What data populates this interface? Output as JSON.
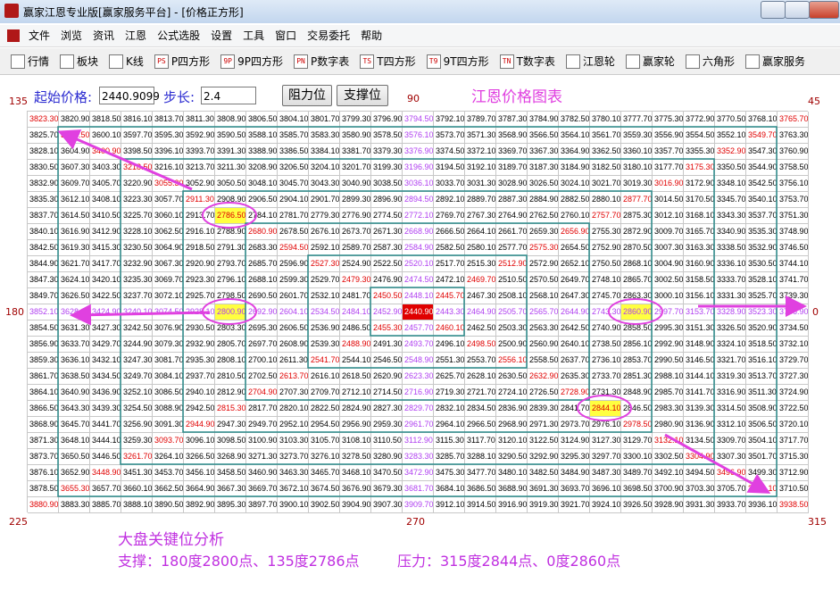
{
  "window": {
    "title": "赢家江恩专业版[赢家服务平台] - [价格正方形]"
  },
  "menu": [
    "文件",
    "浏览",
    "资讯",
    "江恩",
    "公式选股",
    "设置",
    "工具",
    "窗口",
    "交易委托",
    "帮助"
  ],
  "toolbar": [
    {
      "label": "行情"
    },
    {
      "label": "板块"
    },
    {
      "label": "K线"
    },
    {
      "icon": "PS",
      "label": "P四方形"
    },
    {
      "icon": "9P",
      "label": "9P四方形"
    },
    {
      "icon": "PN",
      "label": "P数字表"
    },
    {
      "icon": "TS",
      "label": "T四方形"
    },
    {
      "icon": "T9",
      "label": "9T四方形"
    },
    {
      "icon": "TN",
      "label": "T数字表"
    },
    {
      "label": "江恩轮"
    },
    {
      "label": "赢家轮"
    },
    {
      "label": "六角形"
    },
    {
      "label": "赢家服务"
    }
  ],
  "controls": {
    "start_label": "起始价格:",
    "start_value": "2440.9099",
    "step_label": "步长:",
    "step_value": "2.4",
    "buttons": [
      "阻力位",
      "支撑位"
    ]
  },
  "chart_title": "江恩价格图表",
  "angles": {
    "top_left": "135",
    "top": "90",
    "top_right": "45",
    "left": "180",
    "right": "0",
    "bottom_left": "225",
    "bottom": "270",
    "bottom_right": "315"
  },
  "analysis": {
    "title": "大盘关键位分析",
    "support": "支撑：180度2800点、135度2786点",
    "resistance": "压力：315度2844点、0度2860点"
  },
  "table": {
    "rows": [
      [
        "3823.30",
        "3820.90",
        "3818.50",
        "3816.10",
        "3813.70",
        "3811.30",
        "3808.90",
        "3806.50",
        "3804.10",
        "3801.70",
        "3799.30",
        "3796.90",
        "3794.50",
        "3792.10",
        "3789.70",
        "3787.30",
        "3784.90",
        "3782.50",
        "3780.10",
        "3777.70",
        "3775.30",
        "3772.90",
        "3770.50",
        "3768.10",
        "3765.70"
      ],
      [
        "3825.70",
        "3602.50",
        "3600.10",
        "3597.70",
        "3595.30",
        "3592.90",
        "3590.50",
        "3588.10",
        "3585.70",
        "3583.30",
        "3580.90",
        "3578.50",
        "3576.10",
        "3573.70",
        "3571.30",
        "3568.90",
        "3566.50",
        "3564.10",
        "3561.70",
        "3559.30",
        "3556.90",
        "3554.50",
        "3552.10",
        "3549.70",
        "3763.30"
      ],
      [
        "3828.10",
        "3604.90",
        "3400.90",
        "3398.50",
        "3396.10",
        "3393.70",
        "3391.30",
        "3388.90",
        "3386.50",
        "3384.10",
        "3381.70",
        "3379.30",
        "3376.90",
        "3374.50",
        "3372.10",
        "3369.70",
        "3367.30",
        "3364.90",
        "3362.50",
        "3360.10",
        "3357.70",
        "3355.30",
        "3352.90",
        "3547.30",
        "3760.90"
      ],
      [
        "3830.50",
        "3607.30",
        "3403.30",
        "3218.50",
        "3216.10",
        "3213.70",
        "3211.30",
        "3208.90",
        "3206.50",
        "3204.10",
        "3201.70",
        "3199.30",
        "3196.90",
        "3194.50",
        "3192.10",
        "3189.70",
        "3187.30",
        "3184.90",
        "3182.50",
        "3180.10",
        "3177.70",
        "3175.30",
        "3350.50",
        "3544.90",
        "3758.50"
      ],
      [
        "3832.90",
        "3609.70",
        "3405.70",
        "3220.90",
        "3055.30",
        "3052.90",
        "3050.50",
        "3048.10",
        "3045.70",
        "3043.30",
        "3040.90",
        "3038.50",
        "3036.10",
        "3033.70",
        "3031.30",
        "3028.90",
        "3026.50",
        "3024.10",
        "3021.70",
        "3019.30",
        "3016.90",
        "3172.90",
        "3348.10",
        "3542.50",
        "3756.10"
      ],
      [
        "3835.30",
        "3612.10",
        "3408.10",
        "3223.30",
        "3057.70",
        "2911.30",
        "2908.90",
        "2906.50",
        "2904.10",
        "2901.70",
        "2899.30",
        "2896.90",
        "2894.50",
        "2892.10",
        "2889.70",
        "2887.30",
        "2884.90",
        "2882.50",
        "2880.10",
        "2877.70",
        "3014.50",
        "3170.50",
        "3345.70",
        "3540.10",
        "3753.70"
      ],
      [
        "3837.70",
        "3614.50",
        "3410.50",
        "3225.70",
        "3060.10",
        "2913.70",
        "2786.50",
        "2784.10",
        "2781.70",
        "2779.30",
        "2776.90",
        "2774.50",
        "2772.10",
        "2769.70",
        "2767.30",
        "2764.90",
        "2762.50",
        "2760.10",
        "2757.70",
        "2875.30",
        "3012.10",
        "3168.10",
        "3343.30",
        "3537.70",
        "3751.30"
      ],
      [
        "3840.10",
        "3616.90",
        "3412.90",
        "3228.10",
        "3062.50",
        "2916.10",
        "2788.90",
        "2680.90",
        "2678.50",
        "2676.10",
        "2673.70",
        "2671.30",
        "2668.90",
        "2666.50",
        "2664.10",
        "2661.70",
        "2659.30",
        "2656.90",
        "2755.30",
        "2872.90",
        "3009.70",
        "3165.70",
        "3340.90",
        "3535.30",
        "3748.90"
      ],
      [
        "3842.50",
        "3619.30",
        "3415.30",
        "3230.50",
        "3064.90",
        "2918.50",
        "2791.30",
        "2683.30",
        "2594.50",
        "2592.10",
        "2589.70",
        "2587.30",
        "2584.90",
        "2582.50",
        "2580.10",
        "2577.70",
        "2575.30",
        "2654.50",
        "2752.90",
        "2870.50",
        "3007.30",
        "3163.30",
        "3338.50",
        "3532.90",
        "3746.50"
      ],
      [
        "3844.90",
        "3621.70",
        "3417.70",
        "3232.90",
        "3067.30",
        "2920.90",
        "2793.70",
        "2685.70",
        "2596.90",
        "2527.30",
        "2524.90",
        "2522.50",
        "2520.10",
        "2517.70",
        "2515.30",
        "2512.90",
        "2572.90",
        "2652.10",
        "2750.50",
        "2868.10",
        "3004.90",
        "3160.90",
        "3336.10",
        "3530.50",
        "3744.10"
      ],
      [
        "3847.30",
        "3624.10",
        "3420.10",
        "3235.30",
        "3069.70",
        "2923.30",
        "2796.10",
        "2688.10",
        "2599.30",
        "2529.70",
        "2479.30",
        "2476.90",
        "2474.50",
        "2472.10",
        "2469.70",
        "2510.50",
        "2570.50",
        "2649.70",
        "2748.10",
        "2865.70",
        "3002.50",
        "3158.50",
        "3333.70",
        "3528.10",
        "3741.70"
      ],
      [
        "3849.70",
        "3626.50",
        "3422.50",
        "3237.70",
        "3072.10",
        "2925.70",
        "2798.50",
        "2690.50",
        "2601.70",
        "2532.10",
        "2481.70",
        "2450.50",
        "2448.10",
        "2445.70",
        "2467.30",
        "2508.10",
        "2568.10",
        "2647.30",
        "2745.70",
        "2863.30",
        "3000.10",
        "3156.10",
        "3331.30",
        "3525.70",
        "3739.30"
      ],
      [
        "3852.10",
        "3628.90",
        "3424.90",
        "3240.10",
        "3074.50",
        "2928.10",
        "2800.90",
        "2692.90",
        "2604.10",
        "2534.50",
        "2484.10",
        "2452.90",
        "2440.90",
        "2443.30",
        "2464.90",
        "2505.70",
        "2565.70",
        "2644.90",
        "2743.30",
        "2860.90",
        "2997.70",
        "3153.70",
        "3328.90",
        "3523.30",
        "3736.90"
      ],
      [
        "3854.50",
        "3631.30",
        "3427.30",
        "3242.50",
        "3076.90",
        "2930.50",
        "2803.30",
        "2695.30",
        "2606.50",
        "2536.90",
        "2486.50",
        "2455.30",
        "2457.70",
        "2460.10",
        "2462.50",
        "2503.30",
        "2563.30",
        "2642.50",
        "2740.90",
        "2858.50",
        "2995.30",
        "3151.30",
        "3326.50",
        "3520.90",
        "3734.50"
      ],
      [
        "3856.90",
        "3633.70",
        "3429.70",
        "3244.90",
        "3079.30",
        "2932.90",
        "2805.70",
        "2697.70",
        "2608.90",
        "2539.30",
        "2488.90",
        "2491.30",
        "2493.70",
        "2496.10",
        "2498.50",
        "2500.90",
        "2560.90",
        "2640.10",
        "2738.50",
        "2856.10",
        "2992.90",
        "3148.90",
        "3324.10",
        "3518.50",
        "3732.10"
      ],
      [
        "3859.30",
        "3636.10",
        "3432.10",
        "3247.30",
        "3081.70",
        "2935.30",
        "2808.10",
        "2700.10",
        "2611.30",
        "2541.70",
        "2544.10",
        "2546.50",
        "2548.90",
        "2551.30",
        "2553.70",
        "2556.10",
        "2558.50",
        "2637.70",
        "2736.10",
        "2853.70",
        "2990.50",
        "3146.50",
        "3321.70",
        "3516.10",
        "3729.70"
      ],
      [
        "3861.70",
        "3638.50",
        "3434.50",
        "3249.70",
        "3084.10",
        "2937.70",
        "2810.50",
        "2702.50",
        "2613.70",
        "2616.10",
        "2618.50",
        "2620.90",
        "2623.30",
        "2625.70",
        "2628.10",
        "2630.50",
        "2632.90",
        "2635.30",
        "2733.70",
        "2851.30",
        "2988.10",
        "3144.10",
        "3319.30",
        "3513.70",
        "3727.30"
      ],
      [
        "3864.10",
        "3640.90",
        "3436.90",
        "3252.10",
        "3086.50",
        "2940.10",
        "2812.90",
        "2704.90",
        "2707.30",
        "2709.70",
        "2712.10",
        "2714.50",
        "2716.90",
        "2719.30",
        "2721.70",
        "2724.10",
        "2726.50",
        "2728.90",
        "2731.30",
        "2848.90",
        "2985.70",
        "3141.70",
        "3316.90",
        "3511.30",
        "3724.90"
      ],
      [
        "3866.50",
        "3643.30",
        "3439.30",
        "3254.50",
        "3088.90",
        "2942.50",
        "2815.30",
        "2817.70",
        "2820.10",
        "2822.50",
        "2824.90",
        "2827.30",
        "2829.70",
        "2832.10",
        "2834.50",
        "2836.90",
        "2839.30",
        "2841.70",
        "2844.10",
        "2846.50",
        "2983.30",
        "3139.30",
        "3314.50",
        "3508.90",
        "3722.50"
      ],
      [
        "3868.90",
        "3645.70",
        "3441.70",
        "3256.90",
        "3091.30",
        "2944.90",
        "2947.30",
        "2949.70",
        "2952.10",
        "2954.50",
        "2956.90",
        "2959.30",
        "2961.70",
        "2964.10",
        "2966.50",
        "2968.90",
        "2971.30",
        "2973.70",
        "2976.10",
        "2978.50",
        "2980.90",
        "3136.90",
        "3312.10",
        "3506.50",
        "3720.10"
      ],
      [
        "3871.30",
        "3648.10",
        "3444.10",
        "3259.30",
        "3093.70",
        "3096.10",
        "3098.50",
        "3100.90",
        "3103.30",
        "3105.70",
        "3108.10",
        "3110.50",
        "3112.90",
        "3115.30",
        "3117.70",
        "3120.10",
        "3122.50",
        "3124.90",
        "3127.30",
        "3129.70",
        "3132.10",
        "3134.50",
        "3309.70",
        "3504.10",
        "3717.70"
      ],
      [
        "3873.70",
        "3650.50",
        "3446.50",
        "3261.70",
        "3264.10",
        "3266.50",
        "3268.90",
        "3271.30",
        "3273.70",
        "3276.10",
        "3278.50",
        "3280.90",
        "3283.30",
        "3285.70",
        "3288.10",
        "3290.50",
        "3292.90",
        "3295.30",
        "3297.70",
        "3300.10",
        "3302.50",
        "3304.90",
        "3307.30",
        "3501.70",
        "3715.30"
      ],
      [
        "3876.10",
        "3652.90",
        "3448.90",
        "3451.30",
        "3453.70",
        "3456.10",
        "3458.50",
        "3460.90",
        "3463.30",
        "3465.70",
        "3468.10",
        "3470.50",
        "3472.90",
        "3475.30",
        "3477.70",
        "3480.10",
        "3482.50",
        "3484.90",
        "3487.30",
        "3489.70",
        "3492.10",
        "3494.50",
        "3496.90",
        "3499.30",
        "3712.90"
      ],
      [
        "3878.50",
        "3655.30",
        "3657.70",
        "3660.10",
        "3662.50",
        "3664.90",
        "3667.30",
        "3669.70",
        "3672.10",
        "3674.50",
        "3676.90",
        "3679.30",
        "3681.70",
        "3684.10",
        "3686.50",
        "3688.90",
        "3691.30",
        "3693.70",
        "3696.10",
        "3698.50",
        "3700.90",
        "3703.30",
        "3705.70",
        "3708.10",
        "3710.50"
      ],
      [
        "3880.90",
        "3883.30",
        "3885.70",
        "3888.10",
        "3890.50",
        "3892.90",
        "3895.30",
        "3897.70",
        "3900.10",
        "3902.50",
        "3904.90",
        "3907.30",
        "3909.70",
        "3912.10",
        "3914.50",
        "3916.90",
        "3919.30",
        "3921.70",
        "3924.10",
        "3926.50",
        "3928.90",
        "3931.30",
        "3933.70",
        "3936.10",
        "3938.50"
      ]
    ]
  }
}
